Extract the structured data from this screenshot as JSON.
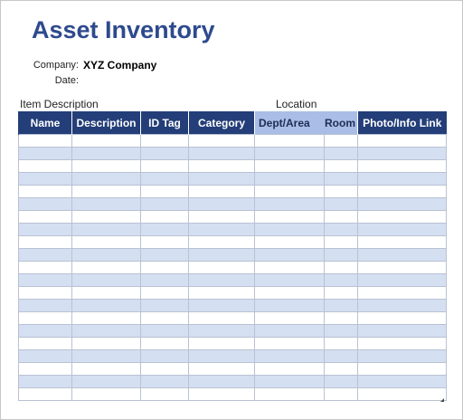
{
  "title": "Asset Inventory",
  "company": {
    "label": "Company:",
    "value": "XYZ Company"
  },
  "date": {
    "label": "Date:",
    "value": ""
  },
  "groups": {
    "item_description": "Item Description",
    "location": "Location"
  },
  "table": {
    "columns": [
      "Name",
      "Description",
      "ID Tag",
      "Category",
      "Dept/Area",
      "Room",
      "Photo/Info Link"
    ],
    "row_count": 21
  },
  "colors": {
    "title": "#2e4a8e",
    "header_dark": "#233e78",
    "header_light": "#a9bde6",
    "row_band": "#d5dff2",
    "grid": "#b9c2d3"
  }
}
